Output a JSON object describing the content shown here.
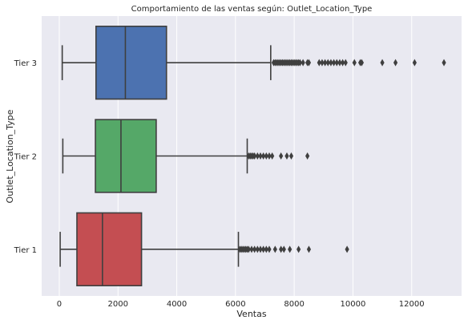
{
  "chart_data": {
    "type": "boxplot",
    "orientation": "horizontal",
    "title": "Comportamiento de las ventas según: Outlet_Location_Type",
    "xlabel": "Ventas",
    "ylabel": "Outlet_Location_Type",
    "xlim": [
      -600,
      13700
    ],
    "xticks": [
      0,
      2000,
      4000,
      6000,
      8000,
      10000,
      12000
    ],
    "categories": [
      "Tier 3",
      "Tier 2",
      "Tier 1"
    ],
    "grid": true,
    "background": "#e9e9f1",
    "series": [
      {
        "category": "Tier 3",
        "color": "#4c72b0",
        "whisker_low": 100,
        "q1": 1250,
        "median": 2250,
        "q3": 3650,
        "whisker_high": 7200,
        "outliers": [
          7300,
          7350,
          7400,
          7450,
          7500,
          7550,
          7600,
          7650,
          7700,
          7750,
          7800,
          7850,
          7900,
          7950,
          8000,
          8050,
          8100,
          8150,
          8200,
          8300,
          8450,
          8500,
          8850,
          8950,
          9050,
          9150,
          9250,
          9350,
          9450,
          9550,
          9650,
          9750,
          10050,
          10250,
          10300,
          11000,
          11450,
          12100,
          13100
        ]
      },
      {
        "category": "Tier 2",
        "color": "#55a868",
        "whisker_low": 120,
        "q1": 1230,
        "median": 2100,
        "q3": 3300,
        "whisker_high": 6400,
        "outliers": [
          6450,
          6500,
          6550,
          6600,
          6650,
          6750,
          6850,
          6950,
          7050,
          7150,
          7250,
          7550,
          7750,
          7900,
          8450
        ]
      },
      {
        "category": "Tier 1",
        "color": "#c44e52",
        "whisker_low": 30,
        "q1": 600,
        "median": 1470,
        "q3": 2800,
        "whisker_high": 6100,
        "outliers": [
          6150,
          6200,
          6250,
          6300,
          6350,
          6400,
          6450,
          6550,
          6650,
          6750,
          6850,
          6950,
          7050,
          7150,
          7350,
          7550,
          7650,
          7850,
          8150,
          8500,
          9800
        ]
      }
    ]
  }
}
